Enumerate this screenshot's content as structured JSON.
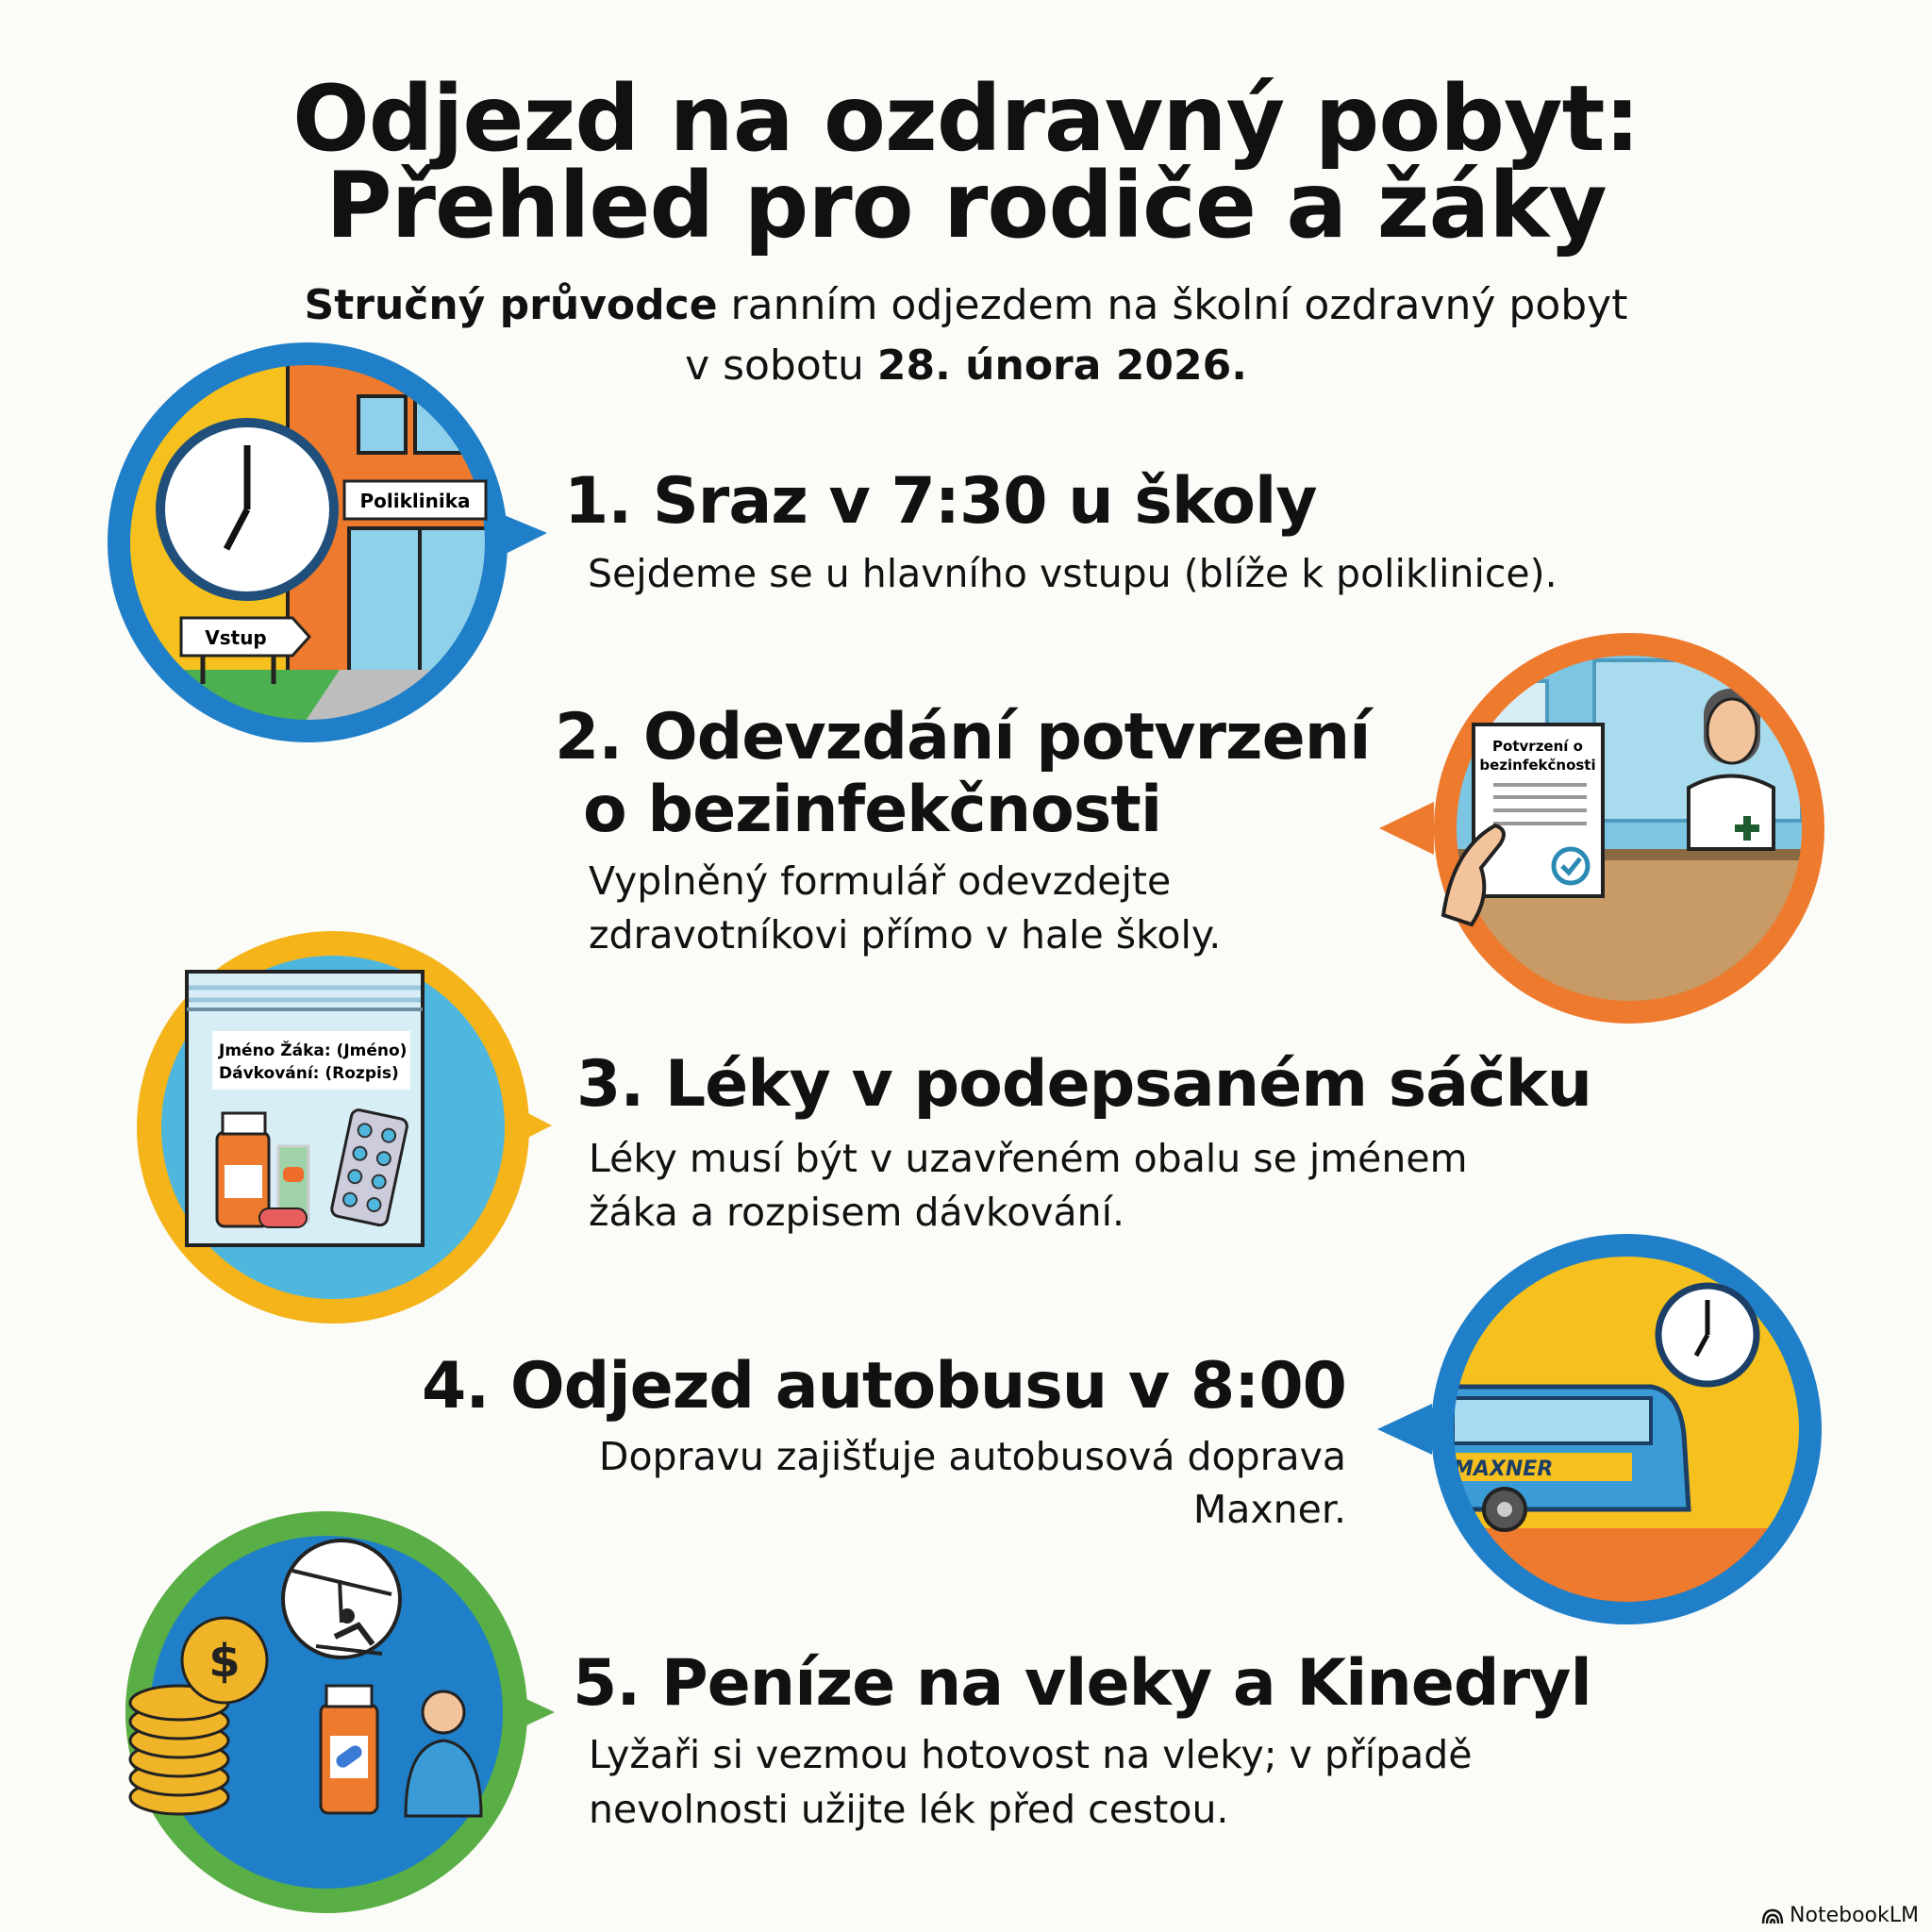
{
  "header": {
    "title_line1": "Odjezd na ozdravný pobyt:",
    "title_line2": "Přehled pro rodiče a žáky",
    "subtitle_bold": "Stručný průvodce",
    "subtitle_rest": " ranním odjezdem na školní ozdravný pobyt",
    "subtitle_line2_pre": "v sobotu ",
    "subtitle_line2_bold": "28. února 2026."
  },
  "steps": [
    {
      "heading": "1. Sraz v 7:30 u školy",
      "desc": [
        "Sejdeme se u hlavního vstupu (blíže k poliklinice)."
      ],
      "ring_color": "#1f7fc8",
      "icon": "clock-school-building-icon",
      "illustration": {
        "sign": "Poliklinika",
        "arrow_sign": "Vstup"
      }
    },
    {
      "heading": [
        "2. Odevzdání potvrzení",
        "o bezinfekčnosti"
      ],
      "desc": [
        "Vyplněný formulář odevzdejte",
        "zdravotníkovi přímo v hale školy."
      ],
      "ring_color": "#ee7a2e",
      "icon": "health-certificate-nurse-icon",
      "illustration": {
        "doc_line1": "Potvrzení o",
        "doc_line2": "bezinfekčnosti"
      }
    },
    {
      "heading": "3. Léky v podepsaném sáčku",
      "desc": [
        "Léky musí být v uzavřeném obalu se jménem",
        "žáka a rozpisem dávkování."
      ],
      "ring_color": "#f4b41a",
      "icon": "medicine-bag-icon",
      "illustration": {
        "label_line1": "Jméno Žáka: (Jméno)",
        "label_line2": "Dávkování: (Rozpis)"
      }
    },
    {
      "heading": "4. Odjezd autobusu v 8:00",
      "desc": [
        "Dopravu zajišťuje autobusová doprava",
        "Maxner."
      ],
      "ring_color": "#1f7fc8",
      "icon": "bus-clock-icon",
      "illustration": {
        "bus_label": "MAXNER"
      }
    },
    {
      "heading": "5. Peníze na vleky a Kinedryl",
      "desc": [
        "Lyžaři si vezmou hotovost na vleky; v případě",
        "nevolnosti užijte lék před cestou."
      ],
      "ring_color": "#5aae46",
      "icon": "money-ski-lift-medicine-icon",
      "illustration": {
        "coin_symbol": "$"
      }
    }
  ],
  "footer": {
    "brand": "NotebookLM",
    "brand_icon": "notebooklm-logo-icon"
  }
}
